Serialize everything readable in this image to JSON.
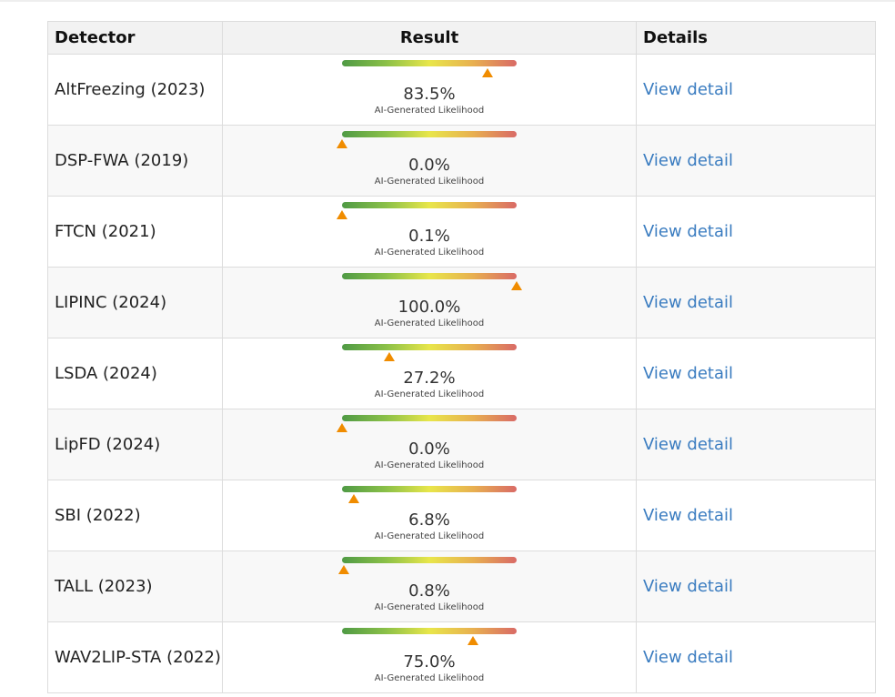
{
  "header": {
    "detector": "Detector",
    "result": "Result",
    "details": "Details"
  },
  "sublabel": "AI-Generated Likelihood",
  "link_label": "View detail",
  "colors": {
    "marker": "#f08c00",
    "link": "#3a7cc0",
    "bar_start": "#4f9a45",
    "bar_mid": "#e8e64a",
    "bar_end": "#d96a66"
  },
  "rows": [
    {
      "name": "AltFreezing (2023)",
      "percent": "83.5%",
      "value": 83.5
    },
    {
      "name": "DSP-FWA (2019)",
      "percent": "0.0%",
      "value": 0.0
    },
    {
      "name": "FTCN (2021)",
      "percent": "0.1%",
      "value": 0.1
    },
    {
      "name": "LIPINC (2024)",
      "percent": "100.0%",
      "value": 100.0
    },
    {
      "name": "LSDA (2024)",
      "percent": "27.2%",
      "value": 27.2
    },
    {
      "name": "LipFD (2024)",
      "percent": "0.0%",
      "value": 0.0
    },
    {
      "name": "SBI (2022)",
      "percent": "6.8%",
      "value": 6.8
    },
    {
      "name": "TALL (2023)",
      "percent": "0.8%",
      "value": 0.8
    },
    {
      "name": "WAV2LIP-STA (2022)",
      "percent": "75.0%",
      "value": 75.0
    }
  ]
}
